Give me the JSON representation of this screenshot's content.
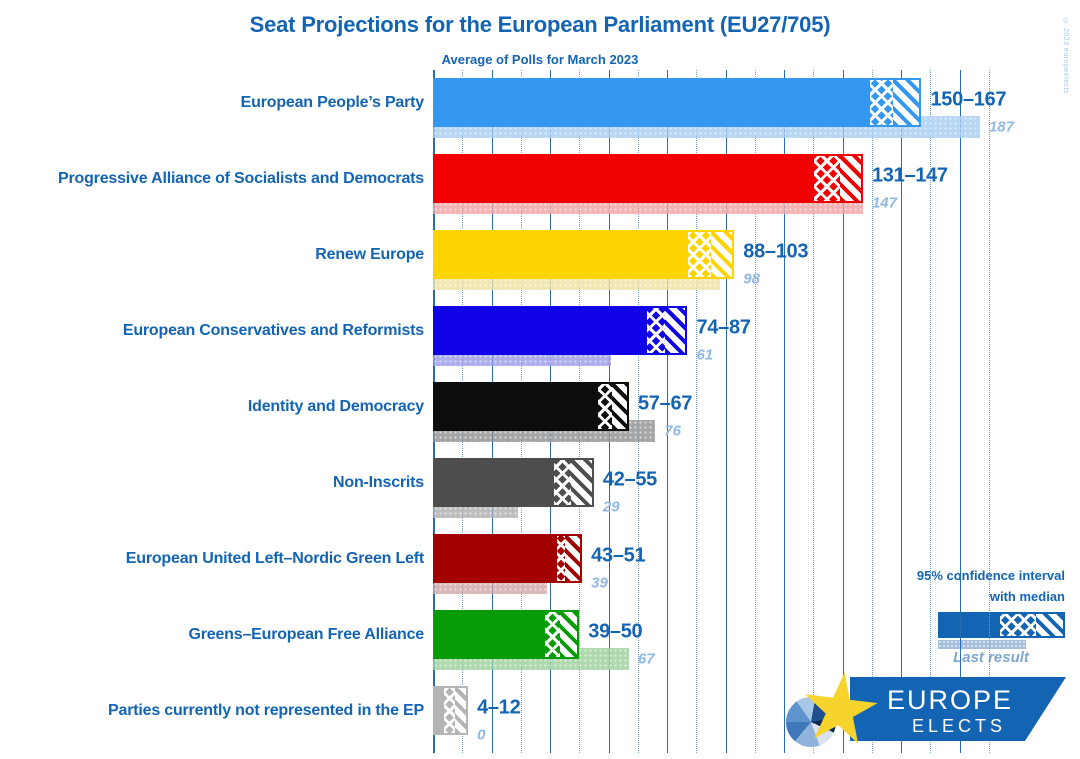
{
  "title": "Seat Projections for the European Parliament (EU27/705)",
  "subtitle": "Average of Polls for March 2023",
  "watermark": "© 2023 europeelects",
  "legend": {
    "ci_line1": "95% confidence interval",
    "ci_line2": "with median",
    "last_result_label": "Last result"
  },
  "logo": {
    "line1": "EUROPE",
    "line2": "ELECTS"
  },
  "colors": {
    "text_blue": "#1464B4",
    "grid_solid": "#2A6CB0",
    "grid_dotted": "#6FA0D4",
    "last_label_blue": "#8FB9E4",
    "legend_bar": "#1464B4",
    "banner": "#1464B4",
    "star_yellow": "#F6D32D"
  },
  "chart_data": {
    "type": "bar",
    "orientation": "horizontal",
    "title": "Seat Projections for the European Parliament (EU27/705)",
    "subtitle": "Average of Polls for March 2023",
    "xlim": [
      0,
      200
    ],
    "gridlines": {
      "solid_step": 20,
      "solid_max": 180,
      "dotted_start": 10,
      "dotted_step": 20,
      "dotted_max": 190
    },
    "legend_position": "bottom-right",
    "categories": [
      "European People’s Party",
      "Progressive Alliance of Socialists and Democrats",
      "Renew Europe",
      "European Conservatives and Reformists",
      "Identity and Democracy",
      "Non-Inscrits",
      "European United Left–Nordic Green Left",
      "Greens–European Free Alliance",
      "Parties currently not represented in the EP"
    ],
    "series": [
      {
        "party": "European People’s Party",
        "ci_low": 150,
        "median": 158,
        "ci_high": 167,
        "last_result": 187,
        "range_label": "150–167",
        "last_label": "187",
        "color": "#3598F0",
        "last_color": "#A6CDF2"
      },
      {
        "party": "Progressive Alliance of Socialists and Democrats",
        "ci_low": 131,
        "median": 140,
        "ci_high": 147,
        "last_result": 147,
        "range_label": "131–147",
        "last_label": "147",
        "color": "#F00000",
        "last_color": "#F2A2A2"
      },
      {
        "party": "Renew Europe",
        "ci_low": 88,
        "median": 96,
        "ci_high": 103,
        "last_result": 98,
        "range_label": "88–103",
        "last_label": "98",
        "color": "#FFD400",
        "last_color": "#EFE2A0"
      },
      {
        "party": "European Conservatives and Reformists",
        "ci_low": 74,
        "median": 80,
        "ci_high": 87,
        "last_result": 61,
        "range_label": "74–87",
        "last_label": "61",
        "color": "#1003E8",
        "last_color": "#9B9BEA"
      },
      {
        "party": "Identity and Democracy",
        "ci_low": 57,
        "median": 62,
        "ci_high": 67,
        "last_result": 76,
        "range_label": "57–67",
        "last_label": "76",
        "color": "#0D0D0D",
        "last_color": "#8F8F8F"
      },
      {
        "party": "Non-Inscrits",
        "ci_low": 42,
        "median": 48,
        "ci_high": 55,
        "last_result": 29,
        "range_label": "42–55",
        "last_label": "29",
        "color": "#4E4E4E",
        "last_color": "#AFAFAF"
      },
      {
        "party": "European United Left–Nordic Green Left",
        "ci_low": 43,
        "median": 46,
        "ci_high": 51,
        "last_result": 39,
        "range_label": "43–51",
        "last_label": "39",
        "color": "#A30000",
        "last_color": "#D0A4A6"
      },
      {
        "party": "Greens–European Free Alliance",
        "ci_low": 39,
        "median": 44,
        "ci_high": 50,
        "last_result": 67,
        "range_label": "39–50",
        "last_label": "67",
        "color": "#089C08",
        "last_color": "#9BCF9B"
      },
      {
        "party": "Parties currently not represented in the EP",
        "ci_low": 4,
        "median": 8,
        "ci_high": 12,
        "last_result": 0,
        "range_label": "4–12",
        "last_label": "0",
        "color": "#B4B4B4",
        "last_color": "#C8C8C8"
      }
    ]
  }
}
